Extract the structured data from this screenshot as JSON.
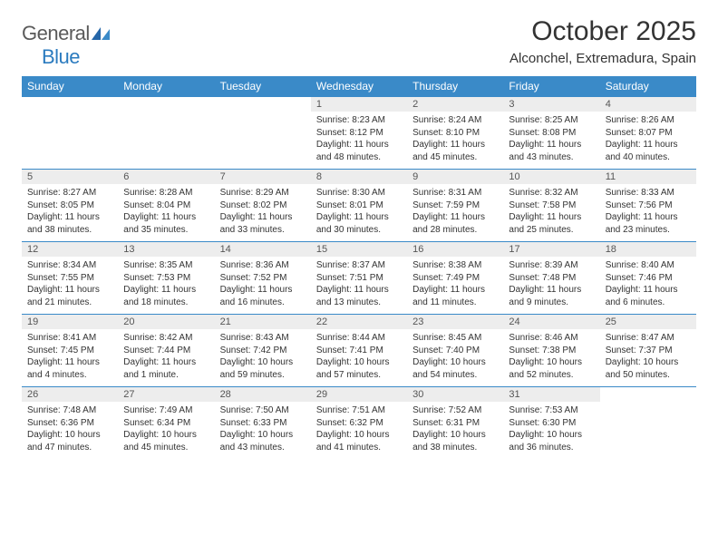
{
  "brand": {
    "word1": "General",
    "word2": "Blue"
  },
  "header": {
    "title": "October 2025",
    "location": "Alconchel, Extremadura, Spain"
  },
  "colors": {
    "header_bg": "#3a8ac8",
    "header_text": "#ffffff",
    "daynum_bg": "#ededed",
    "row_border": "#3a8ac8",
    "body_text": "#333333",
    "logo_gray": "#5a5a5a",
    "logo_blue": "#2b7bbf"
  },
  "typography": {
    "title_fontsize": 30,
    "location_fontsize": 15,
    "weekday_fontsize": 12,
    "daynum_fontsize": 11,
    "body_fontsize": 10
  },
  "calendar": {
    "weekdays": [
      "Sunday",
      "Monday",
      "Tuesday",
      "Wednesday",
      "Thursday",
      "Friday",
      "Saturday"
    ],
    "first_weekday_index": 3,
    "days": [
      {
        "n": 1,
        "sunrise": "8:23 AM",
        "sunset": "8:12 PM",
        "daylight": "11 hours and 48 minutes."
      },
      {
        "n": 2,
        "sunrise": "8:24 AM",
        "sunset": "8:10 PM",
        "daylight": "11 hours and 45 minutes."
      },
      {
        "n": 3,
        "sunrise": "8:25 AM",
        "sunset": "8:08 PM",
        "daylight": "11 hours and 43 minutes."
      },
      {
        "n": 4,
        "sunrise": "8:26 AM",
        "sunset": "8:07 PM",
        "daylight": "11 hours and 40 minutes."
      },
      {
        "n": 5,
        "sunrise": "8:27 AM",
        "sunset": "8:05 PM",
        "daylight": "11 hours and 38 minutes."
      },
      {
        "n": 6,
        "sunrise": "8:28 AM",
        "sunset": "8:04 PM",
        "daylight": "11 hours and 35 minutes."
      },
      {
        "n": 7,
        "sunrise": "8:29 AM",
        "sunset": "8:02 PM",
        "daylight": "11 hours and 33 minutes."
      },
      {
        "n": 8,
        "sunrise": "8:30 AM",
        "sunset": "8:01 PM",
        "daylight": "11 hours and 30 minutes."
      },
      {
        "n": 9,
        "sunrise": "8:31 AM",
        "sunset": "7:59 PM",
        "daylight": "11 hours and 28 minutes."
      },
      {
        "n": 10,
        "sunrise": "8:32 AM",
        "sunset": "7:58 PM",
        "daylight": "11 hours and 25 minutes."
      },
      {
        "n": 11,
        "sunrise": "8:33 AM",
        "sunset": "7:56 PM",
        "daylight": "11 hours and 23 minutes."
      },
      {
        "n": 12,
        "sunrise": "8:34 AM",
        "sunset": "7:55 PM",
        "daylight": "11 hours and 21 minutes."
      },
      {
        "n": 13,
        "sunrise": "8:35 AM",
        "sunset": "7:53 PM",
        "daylight": "11 hours and 18 minutes."
      },
      {
        "n": 14,
        "sunrise": "8:36 AM",
        "sunset": "7:52 PM",
        "daylight": "11 hours and 16 minutes."
      },
      {
        "n": 15,
        "sunrise": "8:37 AM",
        "sunset": "7:51 PM",
        "daylight": "11 hours and 13 minutes."
      },
      {
        "n": 16,
        "sunrise": "8:38 AM",
        "sunset": "7:49 PM",
        "daylight": "11 hours and 11 minutes."
      },
      {
        "n": 17,
        "sunrise": "8:39 AM",
        "sunset": "7:48 PM",
        "daylight": "11 hours and 9 minutes."
      },
      {
        "n": 18,
        "sunrise": "8:40 AM",
        "sunset": "7:46 PM",
        "daylight": "11 hours and 6 minutes."
      },
      {
        "n": 19,
        "sunrise": "8:41 AM",
        "sunset": "7:45 PM",
        "daylight": "11 hours and 4 minutes."
      },
      {
        "n": 20,
        "sunrise": "8:42 AM",
        "sunset": "7:44 PM",
        "daylight": "11 hours and 1 minute."
      },
      {
        "n": 21,
        "sunrise": "8:43 AM",
        "sunset": "7:42 PM",
        "daylight": "10 hours and 59 minutes."
      },
      {
        "n": 22,
        "sunrise": "8:44 AM",
        "sunset": "7:41 PM",
        "daylight": "10 hours and 57 minutes."
      },
      {
        "n": 23,
        "sunrise": "8:45 AM",
        "sunset": "7:40 PM",
        "daylight": "10 hours and 54 minutes."
      },
      {
        "n": 24,
        "sunrise": "8:46 AM",
        "sunset": "7:38 PM",
        "daylight": "10 hours and 52 minutes."
      },
      {
        "n": 25,
        "sunrise": "8:47 AM",
        "sunset": "7:37 PM",
        "daylight": "10 hours and 50 minutes."
      },
      {
        "n": 26,
        "sunrise": "7:48 AM",
        "sunset": "6:36 PM",
        "daylight": "10 hours and 47 minutes."
      },
      {
        "n": 27,
        "sunrise": "7:49 AM",
        "sunset": "6:34 PM",
        "daylight": "10 hours and 45 minutes."
      },
      {
        "n": 28,
        "sunrise": "7:50 AM",
        "sunset": "6:33 PM",
        "daylight": "10 hours and 43 minutes."
      },
      {
        "n": 29,
        "sunrise": "7:51 AM",
        "sunset": "6:32 PM",
        "daylight": "10 hours and 41 minutes."
      },
      {
        "n": 30,
        "sunrise": "7:52 AM",
        "sunset": "6:31 PM",
        "daylight": "10 hours and 38 minutes."
      },
      {
        "n": 31,
        "sunrise": "7:53 AM",
        "sunset": "6:30 PM",
        "daylight": "10 hours and 36 minutes."
      }
    ],
    "labels": {
      "sunrise": "Sunrise:",
      "sunset": "Sunset:",
      "daylight": "Daylight:"
    }
  }
}
